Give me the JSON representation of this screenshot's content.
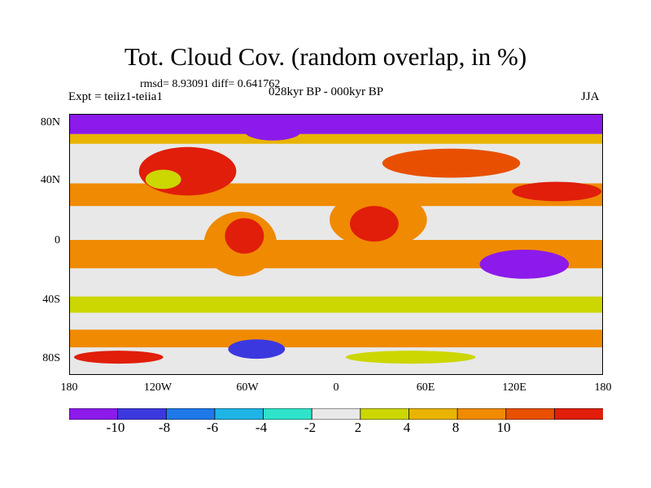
{
  "title": "Tot. Cloud Cov. (random overlap, in %)",
  "stats": "rmsd= 8.93091  diff= 0.641762",
  "experiment": "Expt = teiiz1-teiia1",
  "period": "028kyr BP - 000kyr BP",
  "season": "JJA",
  "lat_labels": [
    "80N",
    "40N",
    "0",
    "40S",
    "80S"
  ],
  "lon_labels": [
    "180",
    "120W",
    "60W",
    "0",
    "60E",
    "120E",
    "180"
  ],
  "colorbar": {
    "labels": [
      "-10",
      "-8",
      "-6",
      "-4",
      "-2",
      "2",
      "4",
      "8",
      "10"
    ],
    "colors": [
      "#8c1aeb",
      "#3c38e0",
      "#1f78e8",
      "#1fb4e6",
      "#2ee3c9",
      "#e8e8e8",
      "#ccd600",
      "#e8b400",
      "#f08a00",
      "#e85000",
      "#e01e0a"
    ]
  }
}
